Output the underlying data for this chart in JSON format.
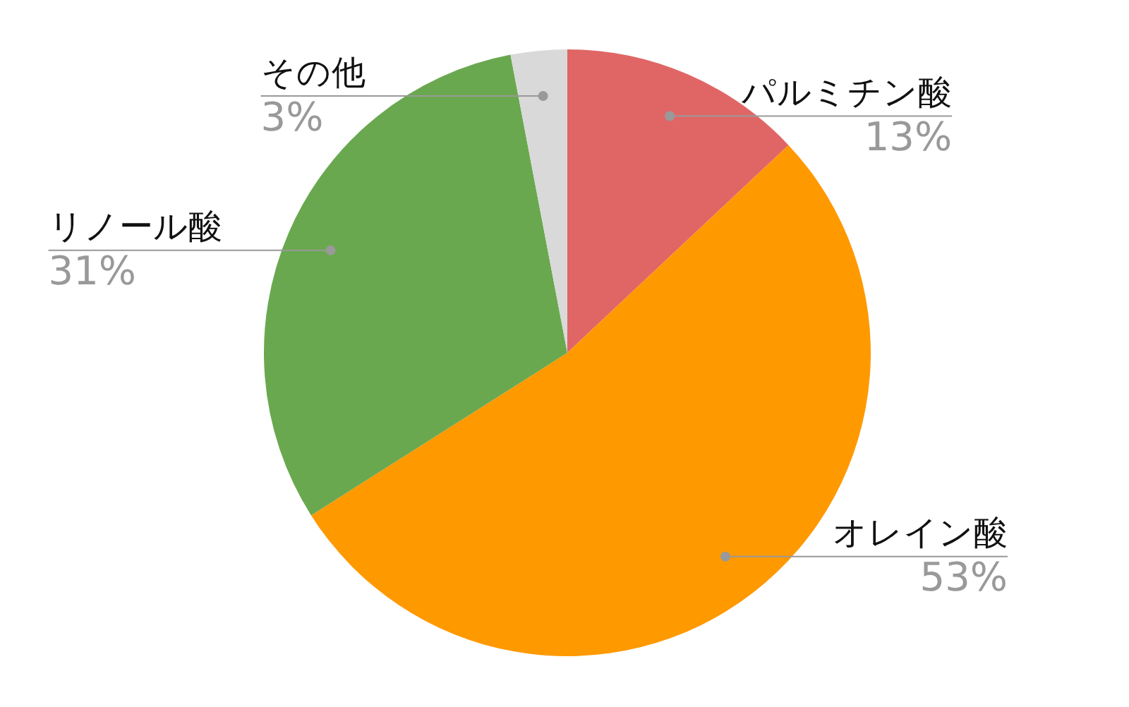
{
  "chart_data": {
    "type": "pie",
    "categories": [
      "パルミチン酸",
      "オレイン酸",
      "リノール酸",
      "その他"
    ],
    "values": [
      13,
      53,
      31,
      3
    ],
    "colors": [
      "#e06666",
      "#ff9900",
      "#6aa84f",
      "#d9d9d9"
    ],
    "value_labels": [
      "13%",
      "53%",
      "31%",
      "3%"
    ],
    "legend": false
  }
}
